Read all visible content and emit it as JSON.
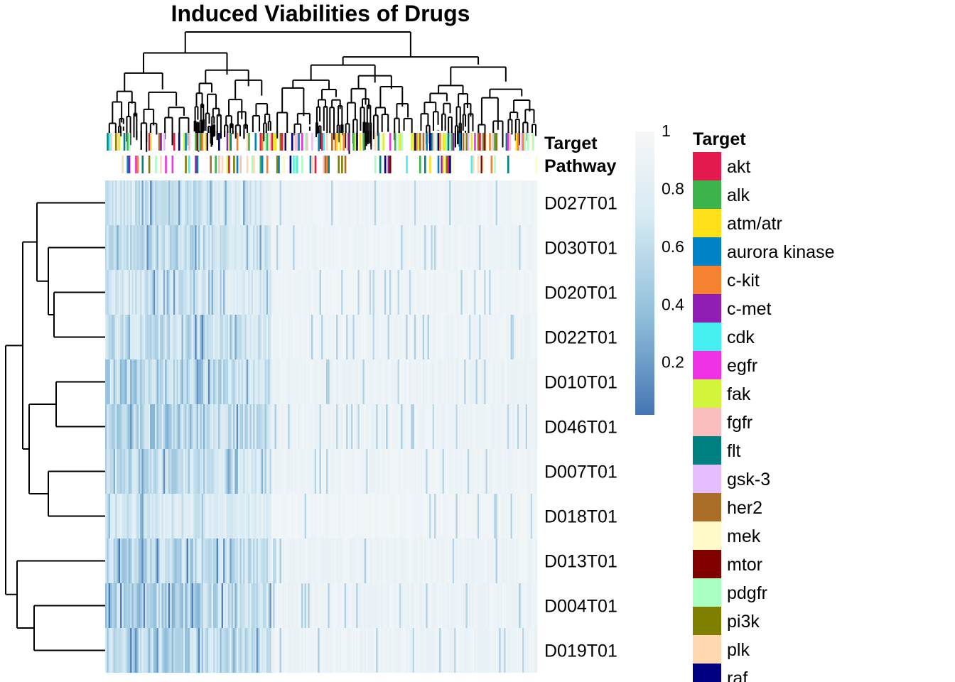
{
  "chart_data": {
    "type": "heatmap",
    "title": "Induced Viabilities of Drugs",
    "rows": [
      "D027T01",
      "D030T01",
      "D020T01",
      "D022T01",
      "D010T01",
      "D046T01",
      "D007T01",
      "D018T01",
      "D013T01",
      "D004T01",
      "D019T01"
    ],
    "row_tree": [
      {
        "a": "D027T01",
        "b": "D030T01",
        "h": 0.25
      },
      {
        "a": "D020T01",
        "b": "D022T01",
        "h": 0.22
      },
      {
        "a": "D030T01+D020T01+D022T01",
        "note": "",
        "h": 0.3
      },
      {
        "a": "D010T01",
        "b": "D046T01",
        "h": 0.28
      }
    ],
    "column_annotations": [
      "Target",
      "Pathway"
    ],
    "colorbar": {
      "ticks": [
        "1",
        "0.8",
        "0.6",
        "0.4",
        "0.2"
      ],
      "tick_values": [
        1,
        0.8,
        0.6,
        0.4,
        0.2
      ],
      "range": [
        0.02,
        1.0
      ],
      "low_color": "#4575b4",
      "high_color": "#f7f7f7"
    },
    "legend": {
      "title": "Target",
      "items": [
        {
          "label": "akt",
          "color": "#e41a4f"
        },
        {
          "label": "alk",
          "color": "#3cb44b"
        },
        {
          "label": "atm/atr",
          "color": "#ffe119"
        },
        {
          "label": "aurora kinase",
          "color": "#0082c8"
        },
        {
          "label": "c-kit",
          "color": "#f58231"
        },
        {
          "label": "c-met",
          "color": "#911eb4"
        },
        {
          "label": "cdk",
          "color": "#46f0f0"
        },
        {
          "label": "egfr",
          "color": "#f032e6"
        },
        {
          "label": "fak",
          "color": "#d2f53c"
        },
        {
          "label": "fgfr",
          "color": "#fabebe"
        },
        {
          "label": "flt",
          "color": "#008080"
        },
        {
          "label": "gsk-3",
          "color": "#e6beff"
        },
        {
          "label": "her2",
          "color": "#aa6e28"
        },
        {
          "label": "mek",
          "color": "#fffac8"
        },
        {
          "label": "mtor",
          "color": "#800000"
        },
        {
          "label": "pdgfr",
          "color": "#aaffc3"
        },
        {
          "label": "pi3k",
          "color": "#808000"
        },
        {
          "label": "plk",
          "color": "#ffd8b1"
        },
        {
          "label": "raf",
          "color": "#000080"
        }
      ]
    }
  }
}
